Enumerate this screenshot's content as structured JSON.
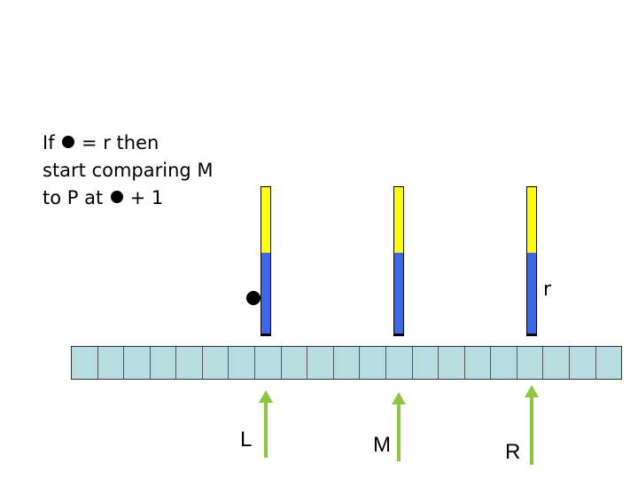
{
  "caption": {
    "line1_pre": "If",
    "line1_post": "= r then",
    "line2": "start comparing M",
    "line3_pre": "to P at",
    "line3_post": "+ 1"
  },
  "r_label": "r",
  "array_cell_count": 21,
  "pointers": {
    "left": "L",
    "middle": "M",
    "right": "R"
  },
  "colors": {
    "bar_top": "#ffff00",
    "bar_bottom": "#3a68f0",
    "array_cell": "#b7dde0",
    "arrow": "#8dc63f"
  }
}
